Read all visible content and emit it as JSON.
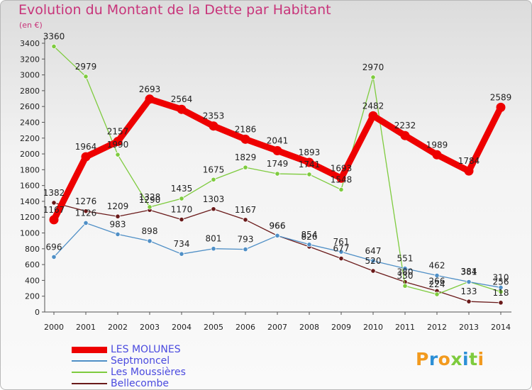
{
  "title": "Evolution du Montant de la Dette par Habitant",
  "unit": "(en €)",
  "chart_data": {
    "type": "line",
    "title": "Evolution du Montant de la Dette par Habitant",
    "ylabel": "(en €)",
    "x": [
      "2000",
      "2001",
      "2002",
      "2003",
      "2004",
      "2005",
      "2006",
      "2007",
      "2008",
      "2009",
      "2010",
      "2011",
      "2012",
      "2013",
      "2014"
    ],
    "ylim": [
      0,
      3400
    ],
    "yticks": [
      0,
      200,
      400,
      600,
      800,
      1000,
      1200,
      1400,
      1600,
      1800,
      2000,
      2200,
      2400,
      2600,
      2800,
      3000,
      3200,
      3400
    ],
    "grid": false,
    "legend": "bottom-left",
    "series": [
      {
        "name": "LES MOLUNES",
        "color": "#ee0000",
        "values": [
          1167,
          1964,
          2157,
          2693,
          2564,
          2353,
          2186,
          2041,
          1893,
          1693,
          2482,
          2232,
          1989,
          1784,
          2589
        ],
        "labels": [
          "1167",
          "1964",
          "2157",
          "2693",
          "2564",
          "2353",
          "2186",
          "2041",
          "1893",
          "1693",
          "2482",
          "2232",
          "1989",
          "1784",
          "2589"
        ]
      },
      {
        "name": "Septmoncel",
        "color": "#4f8fc6",
        "values": [
          696,
          1126,
          983,
          898,
          734,
          801,
          793,
          966,
          854,
          761,
          647,
          551,
          462,
          381,
          310
        ],
        "labels": [
          "696",
          "1126",
          "983",
          "898",
          "734",
          "801",
          "793",
          "966",
          "854",
          "761",
          "647",
          "551",
          "462",
          "381",
          "310"
        ]
      },
      {
        "name": "Les Moussières",
        "color": "#7ecb3e",
        "values": [
          3360,
          2979,
          1990,
          1328,
          1435,
          1675,
          1829,
          1749,
          1741,
          1548,
          2970,
          330,
          224,
          384,
          256
        ],
        "labels": [
          "3360",
          "2979",
          "1990",
          "1328",
          "1435",
          "1675",
          "1829",
          "1749",
          "1741",
          "1548",
          "2970",
          "330",
          "224",
          "384",
          "256"
        ]
      },
      {
        "name": "Bellecombe",
        "color": "#6a1a1a",
        "values": [
          1382,
          1276,
          1209,
          1290,
          1170,
          1303,
          1167,
          966,
          826,
          677,
          520,
          380,
          266,
          133,
          118
        ],
        "labels": [
          "1382",
          "1276",
          "1209",
          "1290",
          "1170",
          "1303",
          "1167",
          "966",
          "826",
          "677",
          "520",
          "380",
          "266",
          "133",
          "118"
        ]
      }
    ]
  },
  "logo": {
    "text": "Proxiti",
    "colors": [
      "#f29a1e",
      "#2c8fd6",
      "#f29a1e",
      "#7ecb3e",
      "#2c8fd6",
      "#7ecb3e",
      "#f29a1e"
    ]
  }
}
